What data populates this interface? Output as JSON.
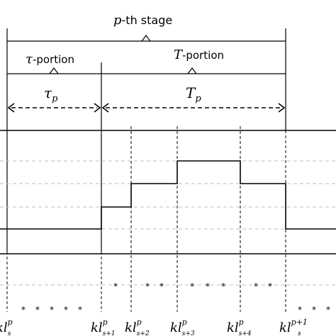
{
  "labels": {
    "stage_var": "p",
    "stage_text": "-th stage",
    "tau_portion_var": "τ",
    "tau_portion_text": "-portion",
    "T_portion_var": "T",
    "T_portion_text": "-portion",
    "tau_p_main": "τ",
    "tau_p_sub": "p",
    "T_p_main": "T",
    "T_p_sub": "p"
  },
  "wave": {
    "levels": [
      1,
      2,
      3,
      4,
      3,
      1
    ],
    "gray_grid_levels": [
      1,
      2,
      3,
      4
    ]
  },
  "ticks": [
    {
      "main": "kl",
      "sup": "p",
      "sub": "s"
    },
    {
      "main": "kl",
      "sup": "p",
      "sub": "s+1"
    },
    {
      "main": "kl",
      "sup": "p",
      "sub": "s+2"
    },
    {
      "main": "kl",
      "sup": "p",
      "sub": "s+3"
    },
    {
      "main": "kl",
      "sup": "p",
      "sub": "s+4"
    },
    {
      "main": "kl",
      "sup": "p+1",
      "sub": "s"
    }
  ],
  "star_symbol": "*"
}
